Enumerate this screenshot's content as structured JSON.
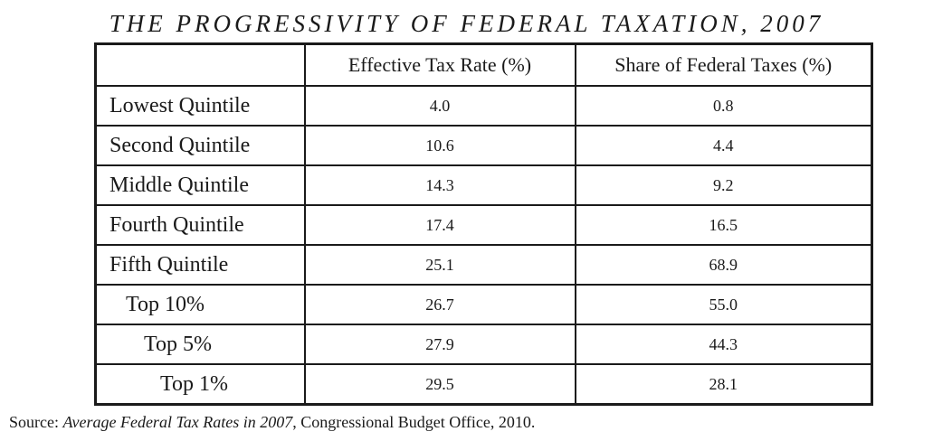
{
  "title": "THE PROGRESSIVITY OF FEDERAL TAXATION, 2007",
  "table": {
    "headers": [
      "",
      "Effective Tax Rate (%)",
      "Share of Federal Taxes (%)"
    ],
    "rows": [
      {
        "label": "Lowest Quintile",
        "rate": "4.0",
        "share": "0.8"
      },
      {
        "label": "Second Quintile",
        "rate": "10.6",
        "share": "4.4"
      },
      {
        "label": "Middle Quintile",
        "rate": "14.3",
        "share": "9.2"
      },
      {
        "label": "Fourth Quintile",
        "rate": "17.4",
        "share": "16.5"
      },
      {
        "label": "Fifth Quintile",
        "rate": "25.1",
        "share": "68.9"
      },
      {
        "label": "Top 10%",
        "rate": "26.7",
        "share": "55.0"
      },
      {
        "label": "Top 5%",
        "rate": "27.9",
        "share": "44.3"
      },
      {
        "label": "Top 1%",
        "rate": "29.5",
        "share": "28.1"
      }
    ]
  },
  "source": {
    "prefix": "Source: ",
    "publication": "Average Federal Tax Rates in 2007",
    "suffix": ", Congressional Budget Office, 2010."
  }
}
